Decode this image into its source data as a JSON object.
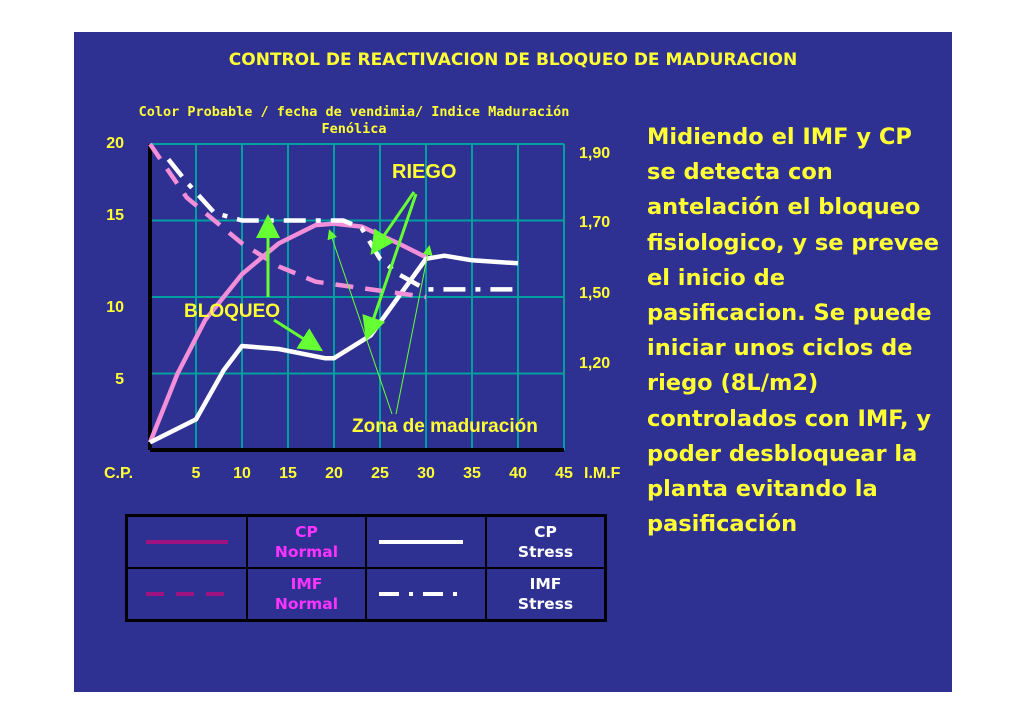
{
  "slide": {
    "title": "CONTROL DE REACTIVACION DE BLOQUEO DE MADURACION",
    "subtitle": "Color Probable /  fecha de vendimia/ Indice Maduración Fenólica",
    "body_text": "Midiendo el IMF y CP se detecta con antelación el bloqueo fisiologico, y se prevee el inicio de pasificacion. Se puede iniciar unos ciclos de riego (8L/m2) controlados con IMF, y poder desbloquear la planta evitando la pasificación"
  },
  "chart_data": {
    "type": "line",
    "x_label_left": "C.P.",
    "x_label_right": "I.M.F",
    "x_ticks": [
      5,
      10,
      15,
      20,
      25,
      30,
      35,
      40,
      45
    ],
    "xlim": [
      0,
      45
    ],
    "y_left_ticks": [
      20,
      15,
      10,
      5
    ],
    "ylim_left": [
      0,
      20
    ],
    "y_right_ticks": [
      "1,90",
      "1,70",
      "1,50",
      "1,20"
    ],
    "grid": true,
    "series": [
      {
        "name": "CP Normal",
        "style": "solid",
        "color": "#f38fd8",
        "x": [
          0,
          3,
          6,
          10,
          14,
          18,
          20,
          23,
          27,
          30
        ],
        "y": [
          0.5,
          5,
          8.5,
          11.5,
          13.5,
          14.7,
          14.8,
          14.6,
          13.5,
          12.6
        ]
      },
      {
        "name": "CP Stress",
        "style": "solid",
        "color": "#ffffff",
        "x": [
          0,
          5,
          8,
          10,
          14,
          19,
          20,
          24,
          27,
          30,
          32,
          35,
          40
        ],
        "y": [
          0.5,
          2,
          5.2,
          6.8,
          6.6,
          6,
          6,
          7.5,
          10,
          12.5,
          12.7,
          12.4,
          12.2
        ]
      },
      {
        "name": "IMF Normal",
        "style": "dashed",
        "color": "#f38fd8",
        "x": [
          0,
          4,
          7,
          10,
          14,
          18,
          24,
          30
        ],
        "y": [
          20,
          16.5,
          15,
          13.5,
          12,
          11,
          10.5,
          10
        ]
      },
      {
        "name": "IMF Stress",
        "style": "dashdot",
        "color": "#ffffff",
        "x": [
          2,
          4,
          7,
          10,
          14,
          18,
          21,
          23,
          25,
          27,
          30,
          35,
          40
        ],
        "y": [
          19,
          17.5,
          15.5,
          15,
          15,
          15,
          15,
          14.5,
          12.5,
          11.5,
          10.5,
          10.5,
          10.5
        ]
      }
    ],
    "annotations": [
      {
        "text": "RIEGO",
        "color": "#ffff33"
      },
      {
        "text": "BLOQUEO",
        "color": "#ffff33"
      },
      {
        "text": "Zona de maduración",
        "color": "#ffff33"
      }
    ]
  },
  "legend": [
    {
      "label_line1": "CP",
      "label_line2": "Normal",
      "color": "#ff33ff",
      "style": "solid"
    },
    {
      "label_line1": "CP",
      "label_line2": "Stress",
      "color": "#ffffff",
      "style": "solid"
    },
    {
      "label_line1": "IMF",
      "label_line2": "Normal",
      "color": "#ff33ff",
      "style": "dashed"
    },
    {
      "label_line1": "IMF",
      "label_line2": "Stress",
      "color": "#ffffff",
      "style": "dashdot"
    }
  ]
}
